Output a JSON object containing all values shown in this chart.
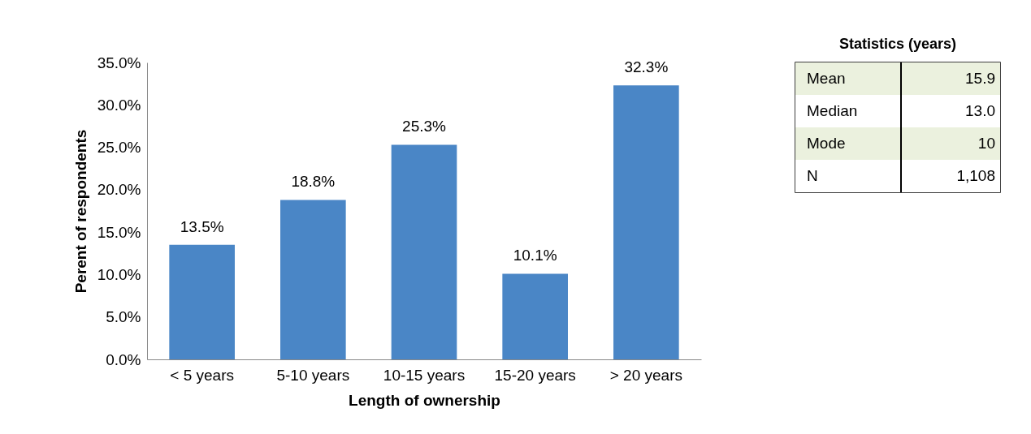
{
  "chart_data": [
    {
      "type": "bar",
      "xlabel": "Length of ownership",
      "ylabel": "Perent of respondents",
      "categories": [
        "< 5 years",
        "5-10 years",
        "10-15 years",
        "15-20 years",
        "> 20 years"
      ],
      "values": [
        13.5,
        18.8,
        25.3,
        10.1,
        32.3
      ],
      "value_labels": [
        "13.5%",
        "18.8%",
        "25.3%",
        "10.1%",
        "32.3%"
      ],
      "color": "#4a86c6",
      "ylim": [
        0,
        35
      ],
      "yticks": [
        {
          "value": 0,
          "label": "0.0%"
        },
        {
          "value": 5,
          "label": "5.0%"
        },
        {
          "value": 10,
          "label": "10.0%"
        },
        {
          "value": 15,
          "label": "15.0%"
        },
        {
          "value": 20,
          "label": "20.0%"
        },
        {
          "value": 25,
          "label": "25.0%"
        },
        {
          "value": 30,
          "label": "30.0%"
        },
        {
          "value": 35,
          "label": "35.0%"
        }
      ],
      "grid": false
    },
    {
      "type": "other",
      "title": "Statistics (years)",
      "categories": [
        "Mean",
        "Median",
        "Mode",
        "N"
      ],
      "value_labels": [
        "15.9",
        "13.0",
        "10",
        "1,108"
      ],
      "colors": [
        "#ebf1de",
        "#ffffff",
        "#ebf1de",
        "#ffffff"
      ]
    }
  ]
}
